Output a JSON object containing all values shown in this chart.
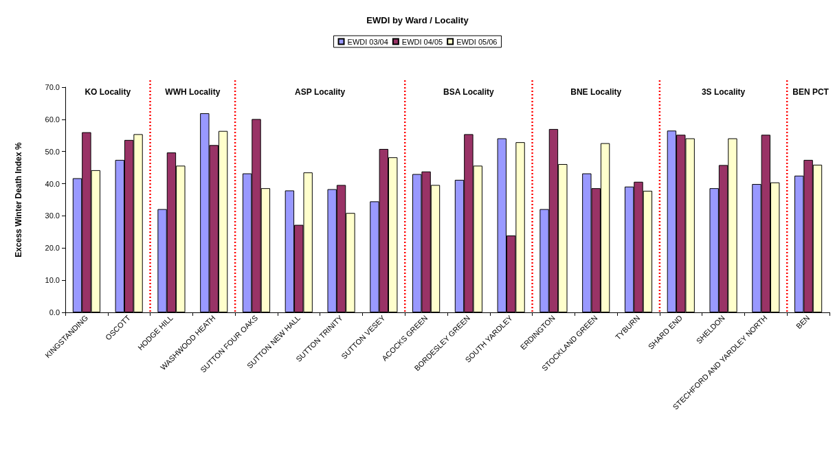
{
  "chart_data": {
    "type": "bar",
    "title": "EWDI by Ward / Locality",
    "ylabel": "Excess Winter Death Index %",
    "categories": [
      "KINGSTANDING",
      "OSCOTT",
      "HODGE HILL",
      "WASHWOOD HEATH",
      "SUTTON FOUR OAKS",
      "SUTTON NEW HALL",
      "SUTTON TRINITY",
      "SUTTON VESEY",
      "ACOCKS GREEN",
      "BORDESLEY GREEN",
      "SOUTH YARDLEY",
      "ERDINGTON",
      "STOCKLAND GREEN",
      "TYBURN",
      "SHARD END",
      "SHELDON",
      "STECHFORD AND YARDLEY NORTH",
      "BEN"
    ],
    "series": [
      {
        "name": "EWDI 03/04",
        "color": "#9999ff",
        "values": [
          41.7,
          47.4,
          32.1,
          61.9,
          43.2,
          37.9,
          38.3,
          34.5,
          43.0,
          41.2,
          54.1,
          32.1,
          43.2,
          39.1,
          56.5,
          38.6,
          39.9,
          42.5
        ]
      },
      {
        "name": "EWDI 04/05",
        "color": "#993366",
        "values": [
          56.0,
          53.6,
          49.7,
          52.0,
          60.1,
          27.2,
          39.6,
          50.8,
          43.8,
          55.4,
          23.9,
          57.0,
          38.6,
          40.6,
          55.2,
          45.8,
          55.2,
          47.4
        ]
      },
      {
        "name": "EWDI 05/06",
        "color": "#ffffcc",
        "values": [
          44.2,
          55.4,
          45.6,
          56.4,
          38.6,
          43.5,
          30.9,
          48.2,
          39.6,
          45.6,
          52.9,
          46.1,
          52.6,
          37.8,
          54.1,
          54.1,
          40.4,
          45.9
        ]
      }
    ],
    "ylim": [
      0,
      70
    ],
    "yticks": [
      {
        "value": 0,
        "label": "0.0"
      },
      {
        "value": 10,
        "label": "10.0"
      },
      {
        "value": 20,
        "label": "20.0"
      },
      {
        "value": 30,
        "label": "30.0"
      },
      {
        "value": 40,
        "label": "40.0"
      },
      {
        "value": 50,
        "label": "50.0"
      },
      {
        "value": 60,
        "label": "60.0"
      },
      {
        "value": 70,
        "label": "70.0"
      }
    ],
    "annotations": [
      "KO Locality",
      "WWH Locality",
      "ASP Locality",
      "BSA Locality",
      "BNE Locality",
      "3S Locality",
      "BEN PCT"
    ],
    "grid": false,
    "legend": "top"
  }
}
